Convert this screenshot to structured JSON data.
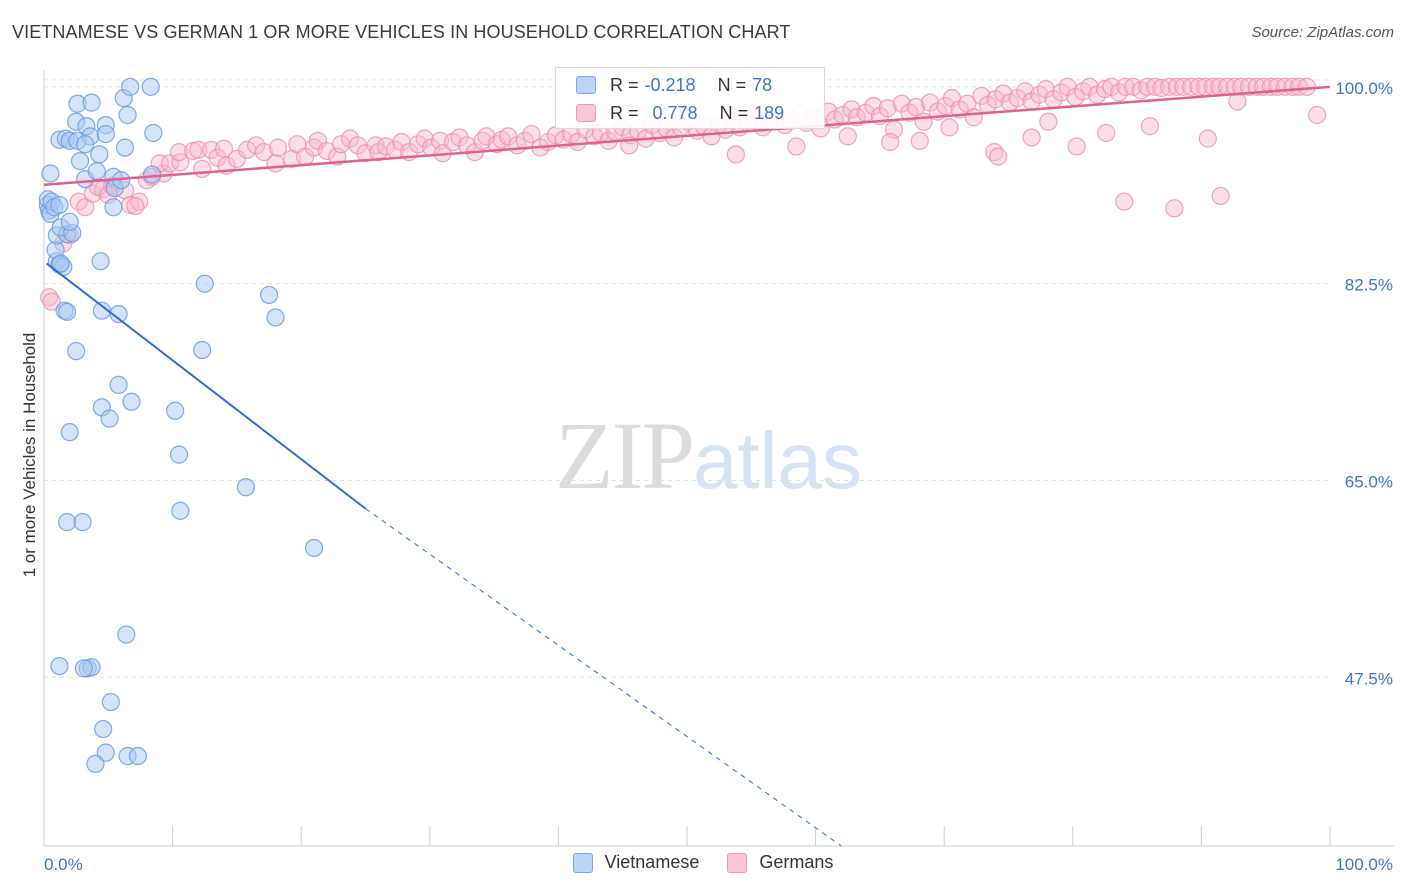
{
  "title": "VIETNAMESE VS GERMAN 1 OR MORE VEHICLES IN HOUSEHOLD CORRELATION CHART",
  "source": "Source: ZipAtlas.com",
  "watermark": {
    "zip": "ZIP",
    "atlas": "atlas"
  },
  "colors": {
    "vietnamese_fill": "#a9c8f2",
    "vietnamese_stroke": "#6c9be0",
    "vietnamese_line": "#2d6fd4",
    "german_fill": "#f7b8cc",
    "german_stroke": "#ee8fae",
    "german_line": "#e0608e",
    "grid": "#e2e2e2",
    "tick_label": "#3c76d1"
  },
  "legend": {
    "rows": [
      {
        "r_label": "R =",
        "r_value": "-0.218",
        "n_label": "N =",
        "n_value": "78"
      },
      {
        "r_label": "R =",
        "r_value": "0.778",
        "n_label": "N =",
        "n_value": "189"
      }
    ]
  },
  "bottom_legend": [
    "Vietnamese",
    "Germans"
  ],
  "chart_data": {
    "type": "scatter",
    "title": "VIETNAMESE VS GERMAN 1 OR MORE VEHICLES IN HOUSEHOLD CORRELATION CHART",
    "xlabel": "",
    "ylabel": "1 or more Vehicles in Household",
    "xlim": [
      0,
      100
    ],
    "ylim": [
      32.5,
      101.5
    ],
    "x_tick_labels": [
      "0.0%",
      "100.0%"
    ],
    "y_ticks": [
      100.0,
      82.5,
      65.0,
      47.5
    ],
    "y_tick_labels": [
      "100.0%",
      "82.5%",
      "65.0%",
      "47.5%"
    ],
    "legend_position": "top-center",
    "series": [
      {
        "name": "Vietnamese",
        "r": -0.218,
        "n": 78,
        "trend_solid": [
          [
            0.2,
            84.3
          ],
          [
            25,
            62.5
          ]
        ],
        "trend_dashed": [
          [
            25,
            62.5
          ],
          [
            62,
            30
          ]
        ],
        "points": [
          [
            0.3,
            89.5
          ],
          [
            0.4,
            89.0
          ],
          [
            0.5,
            88.7
          ],
          [
            0.3,
            90.0
          ],
          [
            0.6,
            89.8
          ],
          [
            0.8,
            89.3
          ],
          [
            1.2,
            89.5
          ],
          [
            0.5,
            92.3
          ],
          [
            1.0,
            84.5
          ],
          [
            0.9,
            85.5
          ],
          [
            1.2,
            84.2
          ],
          [
            1.5,
            84.0
          ],
          [
            1.0,
            86.8
          ],
          [
            1.8,
            86.9
          ],
          [
            1.3,
            87.5
          ],
          [
            2.2,
            87.0
          ],
          [
            2.0,
            88.0
          ],
          [
            1.2,
            95.3
          ],
          [
            1.7,
            95.4
          ],
          [
            2.0,
            95.2
          ],
          [
            2.6,
            95.2
          ],
          [
            2.5,
            96.9
          ],
          [
            2.6,
            98.5
          ],
          [
            3.7,
            98.6
          ],
          [
            3.3,
            96.5
          ],
          [
            3.6,
            95.6
          ],
          [
            4.8,
            96.6
          ],
          [
            4.8,
            95.8
          ],
          [
            3.2,
            94.9
          ],
          [
            2.8,
            93.4
          ],
          [
            3.2,
            91.8
          ],
          [
            4.3,
            94.0
          ],
          [
            4.1,
            92.5
          ],
          [
            5.4,
            92.0
          ],
          [
            5.5,
            91.0
          ],
          [
            6.0,
            91.7
          ],
          [
            5.4,
            89.3
          ],
          [
            6.2,
            99.0
          ],
          [
            6.5,
            97.5
          ],
          [
            6.7,
            100.0
          ],
          [
            8.3,
            100.0
          ],
          [
            6.3,
            94.6
          ],
          [
            8.5,
            95.9
          ],
          [
            8.4,
            92.2
          ],
          [
            4.4,
            84.5
          ],
          [
            1.6,
            80.1
          ],
          [
            1.8,
            80.0
          ],
          [
            4.5,
            80.1
          ],
          [
            5.8,
            79.8
          ],
          [
            12.5,
            82.5
          ],
          [
            17.5,
            81.5
          ],
          [
            18.0,
            79.5
          ],
          [
            2.5,
            76.5
          ],
          [
            12.3,
            76.6
          ],
          [
            5.8,
            73.5
          ],
          [
            4.5,
            71.5
          ],
          [
            6.8,
            72.0
          ],
          [
            5.1,
            70.5
          ],
          [
            10.2,
            71.2
          ],
          [
            2.0,
            69.3
          ],
          [
            10.5,
            67.3
          ],
          [
            15.7,
            64.4
          ],
          [
            10.6,
            62.3
          ],
          [
            1.8,
            61.3
          ],
          [
            3.0,
            61.3
          ],
          [
            21.0,
            59.0
          ],
          [
            6.4,
            51.3
          ],
          [
            1.2,
            48.5
          ],
          [
            3.4,
            48.3
          ],
          [
            3.7,
            48.4
          ],
          [
            5.2,
            45.3
          ],
          [
            4.6,
            42.9
          ],
          [
            4.8,
            40.8
          ],
          [
            4.0,
            39.8
          ],
          [
            6.5,
            40.5
          ],
          [
            7.3,
            40.5
          ],
          [
            3.1,
            48.3
          ],
          [
            1.3,
            84.3
          ]
        ]
      },
      {
        "name": "Germans",
        "r": 0.778,
        "n": 189,
        "trend_solid": [
          [
            0,
            91.3
          ],
          [
            100,
            100.0
          ]
        ],
        "points": [
          [
            0.4,
            81.3
          ],
          [
            0.6,
            80.9
          ],
          [
            2.0,
            86.8
          ],
          [
            1.5,
            86.1
          ],
          [
            2.7,
            89.8
          ],
          [
            3.2,
            89.3
          ],
          [
            3.8,
            90.5
          ],
          [
            4.6,
            90.9
          ],
          [
            4.2,
            91.1
          ],
          [
            5.3,
            91.2
          ],
          [
            5.0,
            90.4
          ],
          [
            6.3,
            90.8
          ],
          [
            6.7,
            89.5
          ],
          [
            7.4,
            89.8
          ],
          [
            7.1,
            89.4
          ],
          [
            8.0,
            91.7
          ],
          [
            8.4,
            92.0
          ],
          [
            9.3,
            92.3
          ],
          [
            9.0,
            93.2
          ],
          [
            9.8,
            93.2
          ],
          [
            10.6,
            93.3
          ],
          [
            10.5,
            94.2
          ],
          [
            11.6,
            94.3
          ],
          [
            12.0,
            94.4
          ],
          [
            12.3,
            92.7
          ],
          [
            13.0,
            94.4
          ],
          [
            13.5,
            93.7
          ],
          [
            14.0,
            94.5
          ],
          [
            14.2,
            93.0
          ],
          [
            15.0,
            93.6
          ],
          [
            15.8,
            94.4
          ],
          [
            16.5,
            94.8
          ],
          [
            17.1,
            94.2
          ],
          [
            18.0,
            93.2
          ],
          [
            18.2,
            94.6
          ],
          [
            19.3,
            93.6
          ],
          [
            19.7,
            94.9
          ],
          [
            20.3,
            93.8
          ],
          [
            21.0,
            94.6
          ],
          [
            21.3,
            95.2
          ],
          [
            22.0,
            94.3
          ],
          [
            22.8,
            93.8
          ],
          [
            23.1,
            94.9
          ],
          [
            23.8,
            95.4
          ],
          [
            24.4,
            94.8
          ],
          [
            25.0,
            94.1
          ],
          [
            25.8,
            94.8
          ],
          [
            26.0,
            94.2
          ],
          [
            26.6,
            94.7
          ],
          [
            27.3,
            94.4
          ],
          [
            27.8,
            95.1
          ],
          [
            28.4,
            94.2
          ],
          [
            29.1,
            94.9
          ],
          [
            29.6,
            95.4
          ],
          [
            30.1,
            94.6
          ],
          [
            30.8,
            95.2
          ],
          [
            31.0,
            94.1
          ],
          [
            31.8,
            95.1
          ],
          [
            32.3,
            95.5
          ],
          [
            32.9,
            94.8
          ],
          [
            33.5,
            94.2
          ],
          [
            34.1,
            95.2
          ],
          [
            34.4,
            95.6
          ],
          [
            35.2,
            94.9
          ],
          [
            35.6,
            95.3
          ],
          [
            36.1,
            95.6
          ],
          [
            36.8,
            94.8
          ],
          [
            37.4,
            95.2
          ],
          [
            37.9,
            95.8
          ],
          [
            38.6,
            94.6
          ],
          [
            39.2,
            95.1
          ],
          [
            39.8,
            95.7
          ],
          [
            40.4,
            95.3
          ],
          [
            41.0,
            95.8
          ],
          [
            41.5,
            95.1
          ],
          [
            42.1,
            96.2
          ],
          [
            42.8,
            95.6
          ],
          [
            43.3,
            95.9
          ],
          [
            43.9,
            95.2
          ],
          [
            44.4,
            96.0
          ],
          [
            45.0,
            96.4
          ],
          [
            45.6,
            95.7
          ],
          [
            46.2,
            96.1
          ],
          [
            46.8,
            95.4
          ],
          [
            47.3,
            96.6
          ],
          [
            47.9,
            95.9
          ],
          [
            48.4,
            96.3
          ],
          [
            49.0,
            95.5
          ],
          [
            49.5,
            96.4
          ],
          [
            50.1,
            96.9
          ],
          [
            50.8,
            96.1
          ],
          [
            51.3,
            96.5
          ],
          [
            51.9,
            95.6
          ],
          [
            52.5,
            96.7
          ],
          [
            53.0,
            96.2
          ],
          [
            53.6,
            97.0
          ],
          [
            54.1,
            96.4
          ],
          [
            54.8,
            96.8
          ],
          [
            55.3,
            97.2
          ],
          [
            55.9,
            96.4
          ],
          [
            56.5,
            96.9
          ],
          [
            57.0,
            97.4
          ],
          [
            57.6,
            96.6
          ],
          [
            58.1,
            97.0
          ],
          [
            58.8,
            97.6
          ],
          [
            59.3,
            96.8
          ],
          [
            59.9,
            97.3
          ],
          [
            60.4,
            96.3
          ],
          [
            61.0,
            97.8
          ],
          [
            61.5,
            97.1
          ],
          [
            62.1,
            97.5
          ],
          [
            62.8,
            98.0
          ],
          [
            63.2,
            97.3
          ],
          [
            63.9,
            97.7
          ],
          [
            64.5,
            98.3
          ],
          [
            65.0,
            97.4
          ],
          [
            65.6,
            98.1
          ],
          [
            66.1,
            96.2
          ],
          [
            66.7,
            98.5
          ],
          [
            67.3,
            97.7
          ],
          [
            67.8,
            98.2
          ],
          [
            68.4,
            96.9
          ],
          [
            68.9,
            98.6
          ],
          [
            69.5,
            97.8
          ],
          [
            70.1,
            98.3
          ],
          [
            70.6,
            99.0
          ],
          [
            71.2,
            98.0
          ],
          [
            71.8,
            98.5
          ],
          [
            72.3,
            97.3
          ],
          [
            72.9,
            99.2
          ],
          [
            73.4,
            98.4
          ],
          [
            74.0,
            98.9
          ],
          [
            74.6,
            99.4
          ],
          [
            75.1,
            98.6
          ],
          [
            75.7,
            99.0
          ],
          [
            76.3,
            99.6
          ],
          [
            76.8,
            98.7
          ],
          [
            77.4,
            99.3
          ],
          [
            77.9,
            99.8
          ],
          [
            78.5,
            98.9
          ],
          [
            79.1,
            99.5
          ],
          [
            79.6,
            100.0
          ],
          [
            80.2,
            99.1
          ],
          [
            80.8,
            99.6
          ],
          [
            81.3,
            100.0
          ],
          [
            81.9,
            99.3
          ],
          [
            82.5,
            99.8
          ],
          [
            83.0,
            100.0
          ],
          [
            83.6,
            99.5
          ],
          [
            84.1,
            100.0
          ],
          [
            84.7,
            100.0
          ],
          [
            85.3,
            99.7
          ],
          [
            85.8,
            100.0
          ],
          [
            86.4,
            100.0
          ],
          [
            86.9,
            99.9
          ],
          [
            87.5,
            100.0
          ],
          [
            88.1,
            100.0
          ],
          [
            88.6,
            100.0
          ],
          [
            89.2,
            100.0
          ],
          [
            89.8,
            100.0
          ],
          [
            90.3,
            100.0
          ],
          [
            90.9,
            100.0
          ],
          [
            91.4,
            100.0
          ],
          [
            92.0,
            100.0
          ],
          [
            92.6,
            100.0
          ],
          [
            93.1,
            100.0
          ],
          [
            93.7,
            100.0
          ],
          [
            94.3,
            100.0
          ],
          [
            94.8,
            100.0
          ],
          [
            95.4,
            100.0
          ],
          [
            95.9,
            100.0
          ],
          [
            96.5,
            100.0
          ],
          [
            97.1,
            100.0
          ],
          [
            97.6,
            100.0
          ],
          [
            98.2,
            100.0
          ],
          [
            99.0,
            97.5
          ],
          [
            53.8,
            94.0
          ],
          [
            58.5,
            94.7
          ],
          [
            65.8,
            95.1
          ],
          [
            70.4,
            96.4
          ],
          [
            73.9,
            94.2
          ],
          [
            76.8,
            95.5
          ],
          [
            78.1,
            96.9
          ],
          [
            82.6,
            95.9
          ],
          [
            86.0,
            96.5
          ],
          [
            90.5,
            95.4
          ],
          [
            92.8,
            98.7
          ],
          [
            80.3,
            94.7
          ],
          [
            84.0,
            89.8
          ],
          [
            87.9,
            89.2
          ],
          [
            91.5,
            90.3
          ],
          [
            62.5,
            95.6
          ],
          [
            68.1,
            95.2
          ],
          [
            45.5,
            94.8
          ],
          [
            74.2,
            93.8
          ]
        ]
      }
    ]
  }
}
